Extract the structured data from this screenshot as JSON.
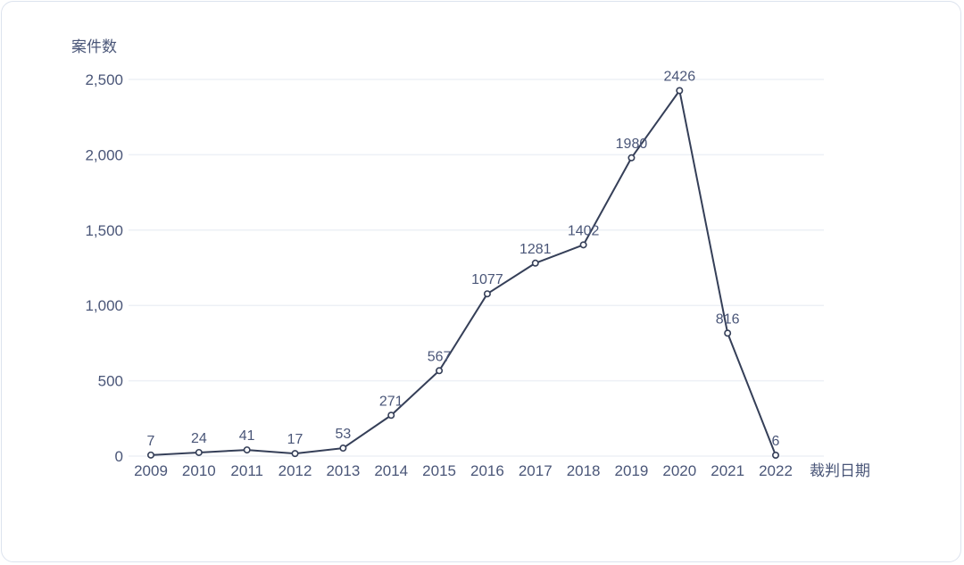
{
  "card": {
    "name": "case-count-trend-card"
  },
  "chart_data": {
    "type": "line",
    "title": "",
    "ylabel": "案件数",
    "xlabel": "裁判日期",
    "categories": [
      "2009",
      "2010",
      "2011",
      "2012",
      "2013",
      "2014",
      "2015",
      "2016",
      "2017",
      "2018",
      "2019",
      "2020",
      "2021",
      "2022"
    ],
    "values": [
      7,
      24,
      41,
      17,
      53,
      271,
      567,
      1077,
      1281,
      1402,
      1980,
      2426,
      816,
      6
    ],
    "point_labels": [
      "7",
      "24",
      "41",
      "17",
      "53",
      "271",
      "567",
      "1077",
      "1281",
      "1402",
      "1980",
      "2426",
      "816",
      "6"
    ],
    "ylim": [
      0,
      2500
    ],
    "yticks": [
      0,
      500,
      1000,
      1500,
      2000,
      2500
    ],
    "ytick_labels": [
      "0",
      "500",
      "1,000",
      "1,500",
      "2,000",
      "2,500"
    ],
    "grid": "horizontal",
    "legend": "none",
    "colors": {
      "line": "#353f58",
      "marker_stroke": "#353f58",
      "marker_fill": "#ffffff",
      "text": "#4a5678",
      "grid": "#edf0f6",
      "card_border": "#dde3ee",
      "background": "#ffffff"
    }
  }
}
